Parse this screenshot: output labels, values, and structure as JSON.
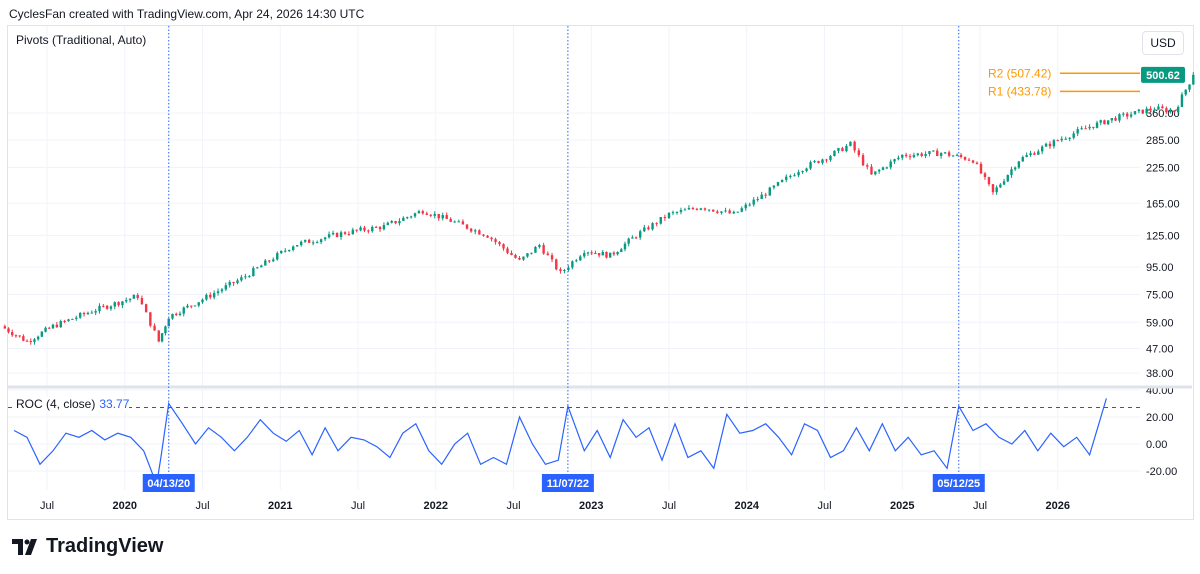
{
  "header": {
    "title": "CyclesFan created with TradingView.com, Apr 24, 2026 14:30 UTC"
  },
  "footer": {
    "logo": "TradingView"
  },
  "chart_data": [
    {
      "type": "candlestick",
      "title": "Pivots (Traditional, Auto)",
      "currency": "USD",
      "y_scale": "log",
      "y_ticks": [
        "360.00",
        "285.00",
        "225.00",
        "165.00",
        "125.00",
        "95.00",
        "75.00",
        "59.00",
        "47.00",
        "38.00"
      ],
      "last_price": "500.62",
      "pivots": [
        {
          "label": "R2 (507.42)",
          "value": 507.42
        },
        {
          "label": "R1 (433.78)",
          "value": 433.78
        }
      ],
      "colors": {
        "up": "#089981",
        "down": "#f23645",
        "pivot": "#ff9800",
        "marker": "#2962ff"
      },
      "closes": [
        [
          "2019-03-15",
          57
        ],
        [
          "2019-05-15",
          50
        ],
        [
          "2019-07-15",
          57
        ],
        [
          "2019-10-15",
          65
        ],
        [
          "2020-02-01",
          74
        ],
        [
          "2020-03-20",
          50
        ],
        [
          "2020-04-13",
          62
        ],
        [
          "2020-07-01",
          72
        ],
        [
          "2020-10-01",
          86
        ],
        [
          "2021-02-01",
          115
        ],
        [
          "2021-06-01",
          128
        ],
        [
          "2021-09-01",
          135
        ],
        [
          "2021-12-01",
          155
        ],
        [
          "2022-02-15",
          140
        ],
        [
          "2022-05-01",
          125
        ],
        [
          "2022-07-15",
          100
        ],
        [
          "2022-09-01",
          115
        ],
        [
          "2022-10-20",
          90
        ],
        [
          "2022-12-15",
          110
        ],
        [
          "2023-02-15",
          105
        ],
        [
          "2023-04-15",
          125
        ],
        [
          "2023-07-01",
          150
        ],
        [
          "2023-09-15",
          160
        ],
        [
          "2023-12-01",
          150
        ],
        [
          "2024-02-15",
          180
        ],
        [
          "2024-05-01",
          220
        ],
        [
          "2024-07-15",
          250
        ],
        [
          "2024-09-01",
          275
        ],
        [
          "2024-10-20",
          210
        ],
        [
          "2025-01-01",
          250
        ],
        [
          "2025-04-01",
          255
        ],
        [
          "2025-06-15",
          240
        ],
        [
          "2025-08-01",
          180
        ],
        [
          "2025-10-01",
          240
        ],
        [
          "2026-01-01",
          285
        ],
        [
          "2026-03-15",
          320
        ],
        [
          "2026-05-15",
          345
        ],
        [
          "2026-08-15",
          375
        ],
        [
          "2026-10-01",
          365
        ],
        [
          "2026-11-15",
          500.62
        ]
      ],
      "x_ticks": [
        "Jul",
        "2020",
        "Jul",
        "2021",
        "Jul",
        "2022",
        "Jul",
        "2023",
        "Jul",
        "2024",
        "Jul",
        "2025",
        "Jul",
        "2026"
      ],
      "markers": [
        "04/13/20",
        "11/07/22",
        "05/12/25"
      ]
    },
    {
      "type": "line",
      "title": "ROC (4, close)",
      "last_value": "33.77",
      "y_ticks": [
        "40.00",
        "20.00",
        "0.00",
        "-20.00"
      ],
      "color": "#2962ff",
      "values": [
        [
          "2019-04",
          10
        ],
        [
          "2019-05",
          5
        ],
        [
          "2019-06",
          -15
        ],
        [
          "2019-07",
          -5
        ],
        [
          "2019-08",
          8
        ],
        [
          "2019-09",
          5
        ],
        [
          "2019-10",
          10
        ],
        [
          "2019-11",
          3
        ],
        [
          "2019-12",
          8
        ],
        [
          "2020-01",
          5
        ],
        [
          "2020-02",
          -5
        ],
        [
          "2020-03",
          -30
        ],
        [
          "2020-03-25",
          -10
        ],
        [
          "2020-04-13",
          30
        ],
        [
          "2020-05",
          15
        ],
        [
          "2020-06",
          0
        ],
        [
          "2020-07",
          12
        ],
        [
          "2020-08",
          5
        ],
        [
          "2020-09",
          -5
        ],
        [
          "2020-10",
          5
        ],
        [
          "2020-11",
          18
        ],
        [
          "2020-12",
          8
        ],
        [
          "2021-01",
          2
        ],
        [
          "2021-02",
          10
        ],
        [
          "2021-03",
          -8
        ],
        [
          "2021-04",
          12
        ],
        [
          "2021-05",
          -5
        ],
        [
          "2021-06",
          5
        ],
        [
          "2021-07",
          3
        ],
        [
          "2021-08",
          -2
        ],
        [
          "2021-09",
          -10
        ],
        [
          "2021-10",
          8
        ],
        [
          "2021-11",
          15
        ],
        [
          "2021-12",
          -5
        ],
        [
          "2022-01",
          -15
        ],
        [
          "2022-02",
          0
        ],
        [
          "2022-03",
          8
        ],
        [
          "2022-04",
          -15
        ],
        [
          "2022-05",
          -10
        ],
        [
          "2022-06",
          -15
        ],
        [
          "2022-07",
          20
        ],
        [
          "2022-08",
          0
        ],
        [
          "2022-09",
          -15
        ],
        [
          "2022-10",
          -12
        ],
        [
          "2022-11-07",
          28
        ],
        [
          "2022-12",
          -5
        ],
        [
          "2023-01",
          10
        ],
        [
          "2023-02",
          -10
        ],
        [
          "2023-03",
          18
        ],
        [
          "2023-04",
          5
        ],
        [
          "2023-05",
          12
        ],
        [
          "2023-06",
          -12
        ],
        [
          "2023-07",
          15
        ],
        [
          "2023-08",
          -10
        ],
        [
          "2023-09",
          -5
        ],
        [
          "2023-10",
          -18
        ],
        [
          "2023-11",
          22
        ],
        [
          "2023-12",
          8
        ],
        [
          "2024-01",
          10
        ],
        [
          "2024-02",
          15
        ],
        [
          "2024-03",
          5
        ],
        [
          "2024-04",
          -8
        ],
        [
          "2024-05",
          15
        ],
        [
          "2024-06",
          10
        ],
        [
          "2024-07",
          -10
        ],
        [
          "2024-08",
          -5
        ],
        [
          "2024-09",
          12
        ],
        [
          "2024-10",
          -5
        ],
        [
          "2024-11",
          15
        ],
        [
          "2024-12",
          -5
        ],
        [
          "2025-01",
          5
        ],
        [
          "2025-02",
          -8
        ],
        [
          "2025-03",
          -5
        ],
        [
          "2025-04",
          -18
        ],
        [
          "2025-05-12",
          28
        ],
        [
          "2025-06",
          10
        ],
        [
          "2025-07",
          15
        ],
        [
          "2025-08",
          5
        ],
        [
          "2025-09",
          0
        ],
        [
          "2025-10",
          10
        ],
        [
          "2025-11",
          -5
        ],
        [
          "2025-12",
          8
        ],
        [
          "2026-01",
          -2
        ],
        [
          "2026-02",
          5
        ],
        [
          "2026-03",
          -8
        ],
        [
          "2026-04-24",
          33.77
        ]
      ]
    }
  ]
}
